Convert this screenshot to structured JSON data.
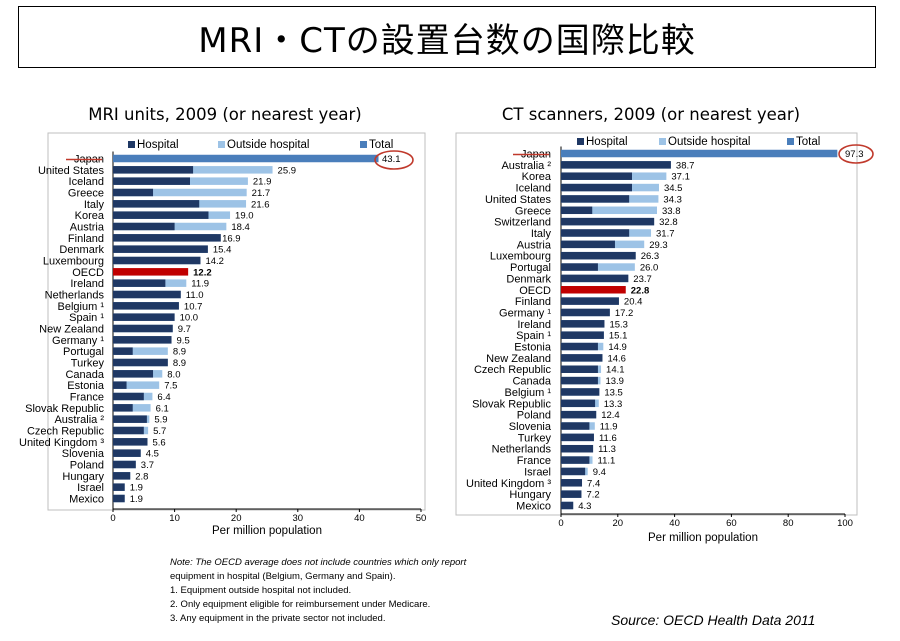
{
  "slide_title": "MRI・CTの設置台数の国際比較",
  "colors": {
    "hospital": "#1f3864",
    "outside": "#9dc3e6",
    "total": "#4a7ebb",
    "oecd": "#c00000",
    "highlight": "#c0392b"
  },
  "chart_data": [
    {
      "type": "bar",
      "title": "MRI units, 2009 (or nearest year)",
      "xlabel": "Per million population",
      "xlim": [
        0,
        50
      ],
      "xticks": [
        "0",
        "10",
        "20",
        "30",
        "40",
        "50"
      ],
      "legend": [
        "Hospital",
        "Outside hospital",
        "Total"
      ],
      "legend_position": "top",
      "categories": [
        "Japan",
        "United States",
        "Iceland",
        "Greece",
        "Italy",
        "Korea",
        "Austria",
        "Finland",
        "Denmark",
        "Luxembourg",
        "OECD",
        "Ireland",
        "Netherlands",
        "Belgium ¹",
        "Spain ¹",
        "New Zealand",
        "Germany ¹",
        "Portugal",
        "Turkey",
        "Canada",
        "Estonia",
        "France",
        "Slovak Republic",
        "Australia ²",
        "Czech Republic",
        "United Kingdom ³",
        "Slovenia",
        "Poland",
        "Hungary",
        "Israel",
        "Mexico"
      ],
      "hospital": [
        null,
        13,
        12.5,
        6.5,
        14,
        15.5,
        10,
        17.5,
        15.4,
        14.2,
        null,
        8.5,
        11.0,
        10.7,
        10.0,
        9.7,
        9.5,
        3.2,
        8.9,
        6.5,
        2.2,
        5.0,
        3.2,
        5.5,
        5.0,
        5.6,
        4.5,
        3.7,
        2.8,
        1.9,
        1.9
      ],
      "totals": [
        43.1,
        25.9,
        21.9,
        21.7,
        21.6,
        19.0,
        18.4,
        16.9,
        15.4,
        14.2,
        12.2,
        11.9,
        11.0,
        10.7,
        10.0,
        9.7,
        9.5,
        8.9,
        8.9,
        8.0,
        7.5,
        6.4,
        6.1,
        5.9,
        5.7,
        5.6,
        4.5,
        3.7,
        2.8,
        1.9,
        1.9
      ],
      "labels": [
        "43.1",
        "25.9",
        "21.9",
        "21.7",
        "21.6",
        "19.0",
        "18.4",
        "16.9",
        "15.4",
        "14.2",
        "12.2",
        "11.9",
        "11.0",
        "10.7",
        "10.0",
        "9.7",
        "9.5",
        "8.9",
        "8.9",
        "8.0",
        "7.5",
        "6.4",
        "6.1",
        "5.9",
        "5.7",
        "5.6",
        "4.5",
        "3.7",
        "2.8",
        "1.9",
        "1.9"
      ],
      "total_only": [
        "Japan",
        "OECD"
      ],
      "highlight": "Japan"
    },
    {
      "type": "bar",
      "title": "CT scanners, 2009 (or nearest year)",
      "xlabel": "Per million population",
      "xlim": [
        0,
        100
      ],
      "xticks": [
        "0",
        "20",
        "40",
        "60",
        "80",
        "100"
      ],
      "legend": [
        "Hospital",
        "Outside hospital",
        "Total"
      ],
      "legend_position": "top",
      "categories": [
        "Japan",
        "Australia ²",
        "Korea",
        "Iceland",
        "United States",
        "Greece",
        "Switzerland",
        "Italy",
        "Austria",
        "Luxembourg",
        "Portugal",
        "Denmark",
        "OECD",
        "Finland",
        "Germany ¹",
        "Ireland",
        "Spain ¹",
        "Estonia",
        "New Zealand",
        "Czech Republic",
        "Canada",
        "Belgium ¹",
        "Slovak Republic",
        "Poland",
        "Slovenia",
        "Turkey",
        "Netherlands",
        "France",
        "Israel",
        "United Kingdom ³",
        "Hungary",
        "Mexico"
      ],
      "hospital": [
        null,
        38.7,
        25,
        25,
        24,
        11,
        32.8,
        24,
        19,
        26.3,
        13,
        23.7,
        null,
        20.4,
        17.2,
        15.3,
        15.1,
        13,
        14.6,
        13,
        13,
        13.5,
        12,
        12.4,
        10,
        11.6,
        11.3,
        10,
        8.5,
        7.4,
        7.2,
        4.3
      ],
      "totals": [
        97.3,
        38.7,
        37.1,
        34.5,
        34.3,
        33.8,
        32.8,
        31.7,
        29.3,
        26.3,
        26.0,
        23.7,
        22.8,
        20.4,
        17.2,
        15.3,
        15.1,
        14.9,
        14.6,
        14.1,
        13.9,
        13.5,
        13.3,
        12.4,
        11.9,
        11.6,
        11.3,
        11.1,
        9.4,
        7.4,
        7.2,
        4.3
      ],
      "labels": [
        "97.3",
        "38.7",
        "37.1",
        "34.5",
        "34.3",
        "33.8",
        "32.8",
        "31.7",
        "29.3",
        "26.3",
        "26.0",
        "23.7",
        "22.8",
        "20.4",
        "17.2",
        "15.3",
        "15.1",
        "14.9",
        "14.6",
        "14.1",
        "13.9",
        "13.5",
        "13.3",
        "12.4",
        "11.9",
        "11.6",
        "11.3",
        "11.1",
        "9.4",
        "7.4",
        "7.2",
        "4.3"
      ],
      "total_only": [
        "Japan",
        "OECD"
      ],
      "highlight": "Japan"
    }
  ],
  "notes": [
    "Note: The OECD average does not include countries which only report",
    "equipment in hospital (Belgium, Germany and Spain).",
    "1. Equipment outside hospital not included.",
    "2. Only equipment eligible for reimbursement under Medicare.",
    "3. Any equipment in the private sector not included."
  ],
  "source": "Source: OECD Health Data 2011"
}
